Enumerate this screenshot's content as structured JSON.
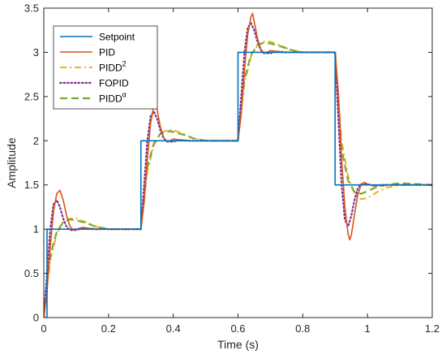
{
  "chart_data": {
    "type": "line",
    "xlabel": "Time (s)",
    "ylabel": "Amplitude",
    "xlim": [
      0,
      1.2
    ],
    "ylim": [
      0,
      3.5
    ],
    "xticks": [
      0,
      0.2,
      0.4,
      0.6,
      0.8,
      1,
      1.2
    ],
    "xtick_labels": [
      "0",
      "0.2",
      "0.4",
      "0.6",
      "0.8",
      "1",
      "1.2"
    ],
    "yticks": [
      0,
      0.5,
      1,
      1.5,
      2,
      2.5,
      3,
      3.5
    ],
    "ytick_labels": [
      "0",
      "0.5",
      "1",
      "1.5",
      "2",
      "2.5",
      "3",
      "3.5"
    ],
    "grid": false,
    "legend_position": "top-left",
    "series": [
      {
        "name": "Setpoint",
        "color": "#0072BD",
        "style": "solid",
        "x": [
          0,
          0.01,
          0.01,
          0.3,
          0.3,
          0.6,
          0.6,
          0.9,
          0.9,
          1.2
        ],
        "y": [
          0,
          0,
          1,
          1,
          2,
          2,
          3,
          3,
          1.5,
          1.5
        ]
      },
      {
        "name": "PID",
        "color": "#D95319",
        "style": "solid",
        "x": [
          0,
          0.01,
          0.02,
          0.03,
          0.04,
          0.05,
          0.06,
          0.07,
          0.08,
          0.09,
          0.1,
          0.12,
          0.14,
          0.17,
          0.2,
          0.25,
          0.3,
          0.31,
          0.32,
          0.33,
          0.34,
          0.345,
          0.35,
          0.36,
          0.37,
          0.38,
          0.39,
          0.4,
          0.42,
          0.44,
          0.47,
          0.5,
          0.55,
          0.6,
          0.61,
          0.62,
          0.63,
          0.64,
          0.645,
          0.65,
          0.66,
          0.67,
          0.68,
          0.69,
          0.7,
          0.72,
          0.74,
          0.77,
          0.8,
          0.85,
          0.9,
          0.91,
          0.92,
          0.93,
          0.94,
          0.945,
          0.95,
          0.96,
          0.97,
          0.98,
          0.99,
          1.0,
          1.02,
          1.04,
          1.07,
          1.1,
          1.15,
          1.2
        ],
        "y": [
          0,
          0.3,
          0.8,
          1.2,
          1.4,
          1.44,
          1.33,
          1.16,
          1.04,
          0.99,
          1.0,
          1.02,
          1.01,
          1.0,
          1.0,
          1.0,
          1.0,
          1.3,
          1.8,
          2.2,
          2.4,
          2.44,
          2.35,
          2.16,
          2.04,
          1.99,
          2.0,
          2.02,
          2.01,
          2.0,
          2.0,
          2.0,
          2.0,
          2.0,
          2.3,
          2.8,
          3.2,
          3.4,
          3.44,
          3.35,
          3.16,
          3.04,
          2.99,
          3.0,
          3.02,
          3.01,
          3.0,
          3.0,
          3.0,
          3.0,
          3.0,
          2.55,
          1.8,
          1.25,
          0.95,
          0.88,
          0.93,
          1.17,
          1.39,
          1.5,
          1.53,
          1.51,
          1.49,
          1.5,
          1.5,
          1.5,
          1.5,
          1.5
        ]
      },
      {
        "name": "PIDD2",
        "color": "#EDB120",
        "style": "dashdot",
        "x": [
          0,
          0.01,
          0.02,
          0.04,
          0.06,
          0.08,
          0.1,
          0.13,
          0.16,
          0.2,
          0.25,
          0.3,
          0.31,
          0.32,
          0.34,
          0.36,
          0.38,
          0.4,
          0.43,
          0.46,
          0.5,
          0.55,
          0.6,
          0.61,
          0.62,
          0.64,
          0.66,
          0.68,
          0.7,
          0.73,
          0.76,
          0.8,
          0.85,
          0.9,
          0.91,
          0.92,
          0.94,
          0.96,
          0.98,
          1.0,
          1.03,
          1.06,
          1.1,
          1.15,
          1.2
        ],
        "y": [
          0,
          0.35,
          0.65,
          0.95,
          1.08,
          1.12,
          1.12,
          1.08,
          1.03,
          1.0,
          1.0,
          1.0,
          1.35,
          1.65,
          1.95,
          2.08,
          2.12,
          2.12,
          2.08,
          2.03,
          2.0,
          2.0,
          2.0,
          2.35,
          2.65,
          2.95,
          3.08,
          3.12,
          3.12,
          3.08,
          3.03,
          3.0,
          3.0,
          3.0,
          2.5,
          2.0,
          1.6,
          1.4,
          1.34,
          1.35,
          1.42,
          1.47,
          1.5,
          1.5,
          1.5
        ]
      },
      {
        "name": "FOPID",
        "color": "#7E2F8E",
        "style": "dotted",
        "x": [
          0,
          0.01,
          0.02,
          0.03,
          0.04,
          0.05,
          0.06,
          0.07,
          0.08,
          0.1,
          0.12,
          0.15,
          0.2,
          0.25,
          0.3,
          0.31,
          0.32,
          0.33,
          0.34,
          0.35,
          0.36,
          0.37,
          0.38,
          0.4,
          0.42,
          0.45,
          0.5,
          0.55,
          0.6,
          0.61,
          0.62,
          0.63,
          0.64,
          0.65,
          0.66,
          0.67,
          0.68,
          0.7,
          0.72,
          0.75,
          0.8,
          0.85,
          0.9,
          0.91,
          0.92,
          0.93,
          0.94,
          0.95,
          0.96,
          0.97,
          0.98,
          1.0,
          1.02,
          1.05,
          1.1,
          1.15,
          1.2
        ],
        "y": [
          0,
          0.5,
          1.0,
          1.28,
          1.33,
          1.25,
          1.12,
          1.03,
          0.99,
          0.99,
          1.01,
          1.0,
          1.0,
          1.0,
          1.0,
          1.5,
          2.0,
          2.28,
          2.33,
          2.25,
          2.12,
          2.03,
          1.99,
          1.99,
          2.01,
          2.0,
          2.0,
          2.0,
          2.0,
          2.5,
          3.0,
          3.28,
          3.33,
          3.25,
          3.12,
          3.03,
          2.99,
          2.99,
          3.01,
          3.0,
          3.0,
          3.0,
          3.0,
          2.25,
          1.5,
          1.11,
          1.03,
          1.15,
          1.33,
          1.46,
          1.51,
          1.51,
          1.49,
          1.5,
          1.5,
          1.5,
          1.5
        ]
      },
      {
        "name": "PIDDα",
        "color": "#77AC30",
        "style": "dashed",
        "x": [
          0,
          0.01,
          0.02,
          0.04,
          0.06,
          0.08,
          0.1,
          0.13,
          0.16,
          0.2,
          0.25,
          0.3,
          0.31,
          0.32,
          0.34,
          0.36,
          0.38,
          0.4,
          0.43,
          0.46,
          0.5,
          0.55,
          0.6,
          0.61,
          0.62,
          0.64,
          0.66,
          0.68,
          0.7,
          0.73,
          0.76,
          0.8,
          0.85,
          0.9,
          0.91,
          0.92,
          0.94,
          0.96,
          0.98,
          1.0,
          1.03,
          1.06,
          1.1,
          1.15,
          1.2
        ],
        "y": [
          0,
          0.4,
          0.7,
          0.97,
          1.08,
          1.11,
          1.1,
          1.07,
          1.03,
          1.0,
          1.0,
          1.0,
          1.4,
          1.7,
          1.97,
          2.08,
          2.11,
          2.1,
          2.07,
          2.03,
          2.0,
          2.0,
          2.0,
          2.4,
          2.7,
          2.97,
          3.08,
          3.11,
          3.1,
          3.07,
          3.03,
          3.0,
          3.0,
          3.0,
          2.4,
          1.9,
          1.55,
          1.42,
          1.4,
          1.43,
          1.48,
          1.5,
          1.52,
          1.51,
          1.5
        ]
      }
    ]
  },
  "legend": {
    "items": [
      {
        "base": "Setpoint",
        "sup": ""
      },
      {
        "base": "PID",
        "sup": ""
      },
      {
        "base": "PIDD",
        "sup": "2"
      },
      {
        "base": "FOPID",
        "sup": ""
      },
      {
        "base": "PIDD",
        "sup": "α"
      }
    ]
  }
}
